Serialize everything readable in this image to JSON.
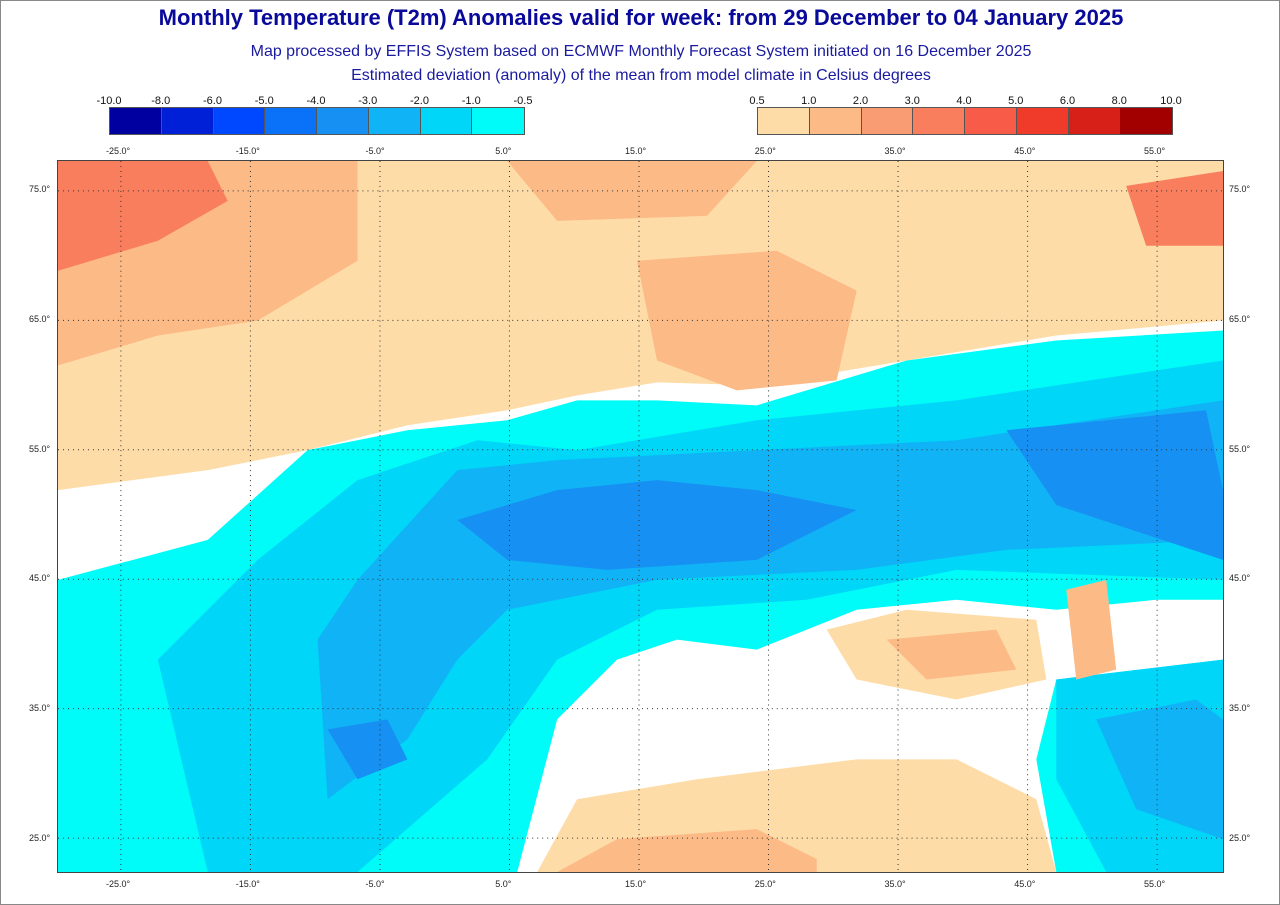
{
  "title": "Monthly Temperature (T2m) Anomalies valid for week: from 29 December to 04 January 2025",
  "subtitle1": "Map processed by EFFIS System based on ECMWF Monthly Forecast System initiated on 16 December 2025",
  "subtitle2": "Estimated deviation (anomaly) of the mean from model climate in Celsius degrees",
  "legend_cold": {
    "labels": [
      "-10.0",
      "-8.0",
      "-6.0",
      "-5.0",
      "-4.0",
      "-3.0",
      "-2.0",
      "-1.0",
      "-0.5"
    ],
    "colors": [
      "#0000a0",
      "#0020d8",
      "#0048ff",
      "#0a72f8",
      "#1690f2",
      "#10b4f6",
      "#00d6f8",
      "#00fcf8"
    ]
  },
  "legend_warm": {
    "labels": [
      "0.5",
      "1.0",
      "2.0",
      "3.0",
      "4.0",
      "5.0",
      "6.0",
      "8.0",
      "10.0"
    ],
    "colors": [
      "#fedca8",
      "#fbba86",
      "#f99c74",
      "#f97e5e",
      "#f85c48",
      "#f03a2a",
      "#d62018",
      "#a20000"
    ]
  },
  "lon_ticks": [
    "-25.0°",
    "-15.0°",
    "-5.0°",
    "5.0°",
    "15.0°",
    "25.0°",
    "35.0°",
    "45.0°",
    "55.0°"
  ],
  "lat_ticks": [
    "75.0°",
    "65.0°",
    "55.0°",
    "45.0°",
    "35.0°",
    "25.0°"
  ]
}
